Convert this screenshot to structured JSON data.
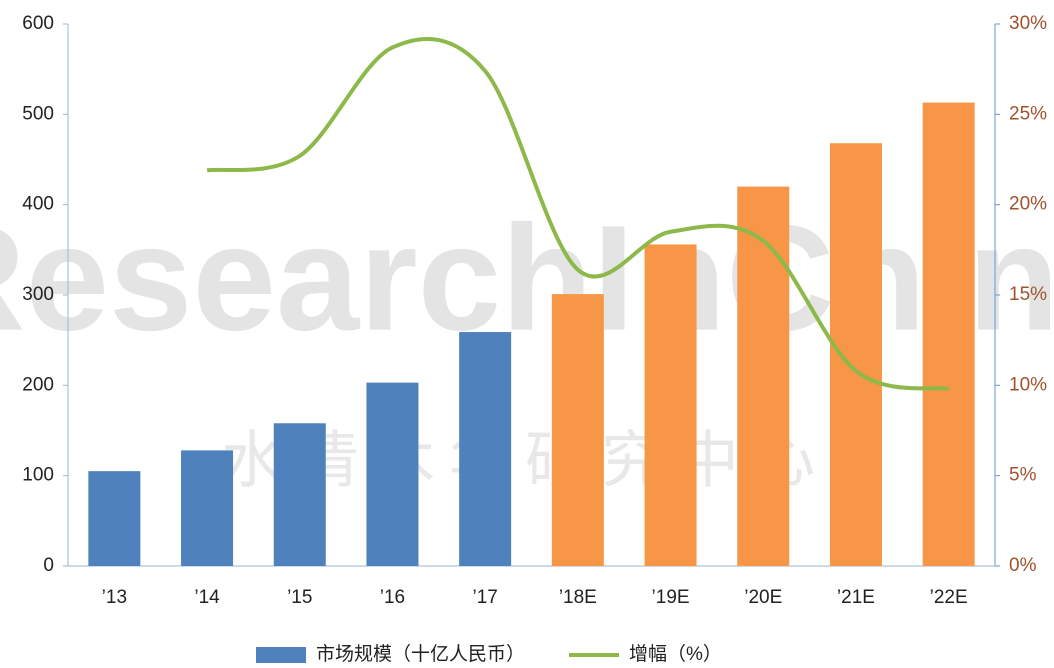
{
  "chart_data": {
    "type": "bar",
    "watermark": [
      "ResearchInChina",
      "水清木华研究中心"
    ],
    "categories": [
      "’13",
      "’14",
      "’15",
      "’16",
      "’17",
      "’18E",
      "’19E",
      "’20E",
      "’21E",
      "’22E"
    ],
    "series": [
      {
        "name": "市场规模（十亿人民币）",
        "type": "bar",
        "color": "#4f81bd",
        "colors": [
          "#4f81bd",
          "#4f81bd",
          "#4f81bd",
          "#4f81bd",
          "#4f81bd",
          "#f79646",
          "#f79646",
          "#f79646",
          "#f79646",
          "#f79646"
        ],
        "values": [
          105,
          128,
          158,
          203,
          259,
          301,
          356,
          420,
          468,
          513
        ]
      },
      {
        "name": "增幅（%）",
        "type": "line",
        "axis": "y2",
        "color": "#8db84a",
        "values": [
          null,
          21.9,
          22.7,
          28.7,
          27.4,
          16.4,
          18.5,
          18.0,
          10.8,
          9.8
        ]
      }
    ],
    "ylim": [
      0,
      600
    ],
    "yticks": [
      0,
      100,
      200,
      300,
      400,
      500,
      600
    ],
    "y2lim": [
      0,
      30
    ],
    "y2ticks": [
      {
        "value": 0,
        "label": "0%"
      },
      {
        "value": 5,
        "label": "5%"
      },
      {
        "value": 10,
        "label": "10%"
      },
      {
        "value": 15,
        "label": "15%"
      },
      {
        "value": 20,
        "label": "20%"
      },
      {
        "value": 25,
        "label": "25%"
      },
      {
        "value": 30,
        "label": "30%"
      }
    ]
  }
}
